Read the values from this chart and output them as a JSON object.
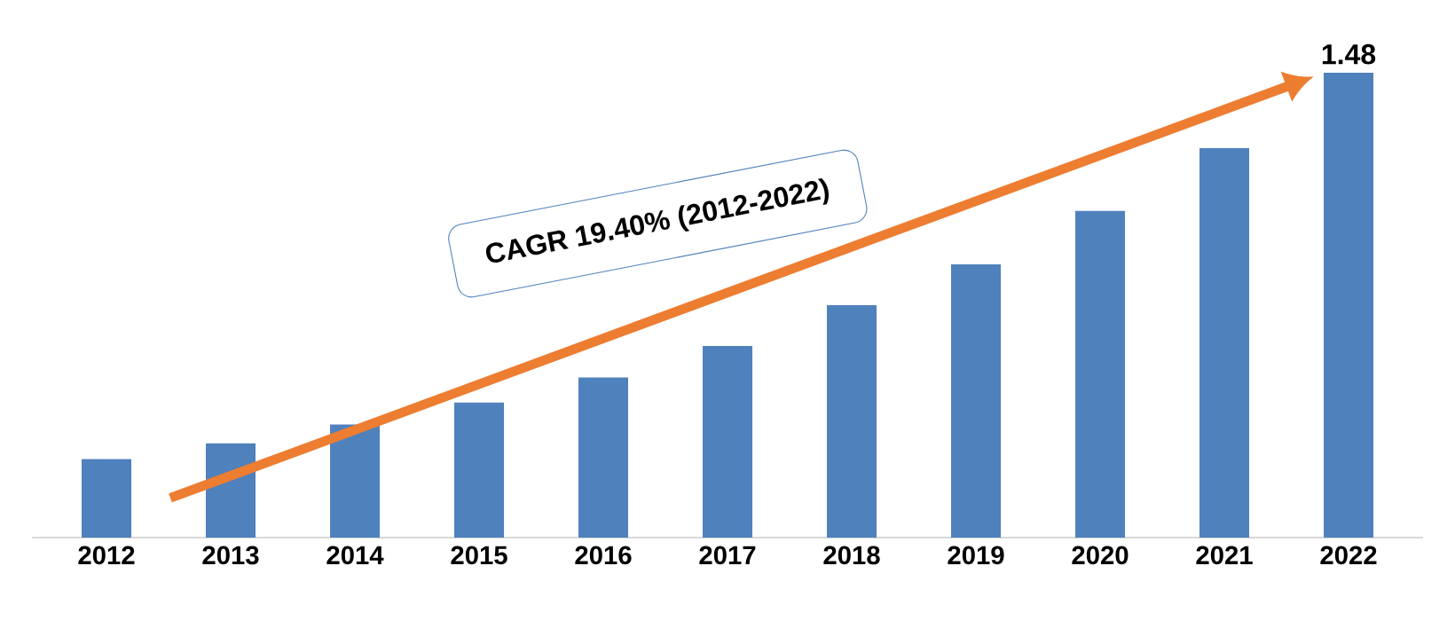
{
  "chart_data": {
    "type": "bar",
    "categories": [
      "2012",
      "2013",
      "2014",
      "2015",
      "2016",
      "2017",
      "2018",
      "2019",
      "2020",
      "2021",
      "2022"
    ],
    "values": [
      0.25,
      0.3,
      0.36,
      0.43,
      0.51,
      0.61,
      0.74,
      0.87,
      1.04,
      1.24,
      1.48
    ],
    "value_labels": [
      null,
      null,
      null,
      null,
      null,
      null,
      null,
      null,
      null,
      null,
      "1.48"
    ],
    "color": "#4f81bd",
    "annotations": [
      "CAGR 19.40% (2012-2022)"
    ]
  }
}
